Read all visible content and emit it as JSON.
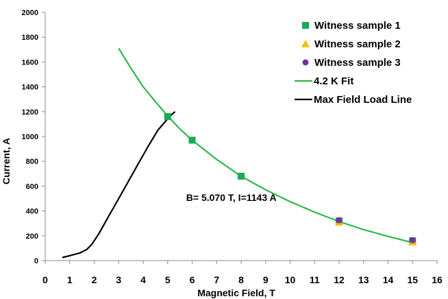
{
  "chart_data": {
    "type": "scatter",
    "xlabel": "Magnetic Field, T",
    "ylabel": "Current, A",
    "xlim": [
      0,
      16
    ],
    "ylim": [
      0,
      2000
    ],
    "xticks": [
      0,
      1,
      2,
      3,
      4,
      5,
      6,
      7,
      8,
      9,
      10,
      11,
      12,
      13,
      14,
      15,
      16
    ],
    "yticks": [
      0,
      200,
      400,
      600,
      800,
      1000,
      1200,
      1400,
      1600,
      1800,
      2000
    ],
    "grid": false,
    "legend_position": "top-right",
    "series": [
      {
        "name": "Witness sample 1",
        "kind": "marker",
        "marker": "square",
        "color": "#1aaa55",
        "x": [
          5,
          6,
          8,
          12,
          15
        ],
        "y": [
          1160,
          970,
          680,
          320,
          160
        ]
      },
      {
        "name": "Witness sample 2",
        "kind": "marker",
        "marker": "triangle",
        "color": "#f2c200",
        "x": [
          12,
          15
        ],
        "y": [
          310,
          150
        ]
      },
      {
        "name": "Witness sample 3",
        "kind": "marker",
        "marker": "circle",
        "color": "#7a2fa0",
        "x": [
          12,
          15
        ],
        "y": [
          325,
          165
        ]
      },
      {
        "name": "4.2 K Fit",
        "kind": "line",
        "color": "#2db84b",
        "x": [
          3,
          3.5,
          4,
          4.5,
          5,
          5.5,
          6,
          7,
          8,
          9,
          10,
          11,
          12,
          13,
          14,
          15
        ],
        "y": [
          1710,
          1550,
          1400,
          1280,
          1165,
          1060,
          970,
          815,
          680,
          570,
          475,
          390,
          315,
          250,
          195,
          145
        ]
      },
      {
        "name": "Max Field Load Line",
        "kind": "line",
        "color": "#000000",
        "x": [
          0.7,
          1.0,
          1.4,
          1.7,
          1.9,
          2.2,
          2.6,
          3.0,
          3.4,
          3.8,
          4.2,
          4.6,
          5.0,
          5.1,
          5.3
        ],
        "y": [
          25,
          40,
          60,
          90,
          130,
          220,
          360,
          500,
          640,
          780,
          920,
          1050,
          1143,
          1165,
          1200
        ]
      }
    ],
    "annotations": [
      {
        "text": "B= 5.070 T, I=1143 A",
        "x": 7.6,
        "y": 480
      }
    ]
  }
}
